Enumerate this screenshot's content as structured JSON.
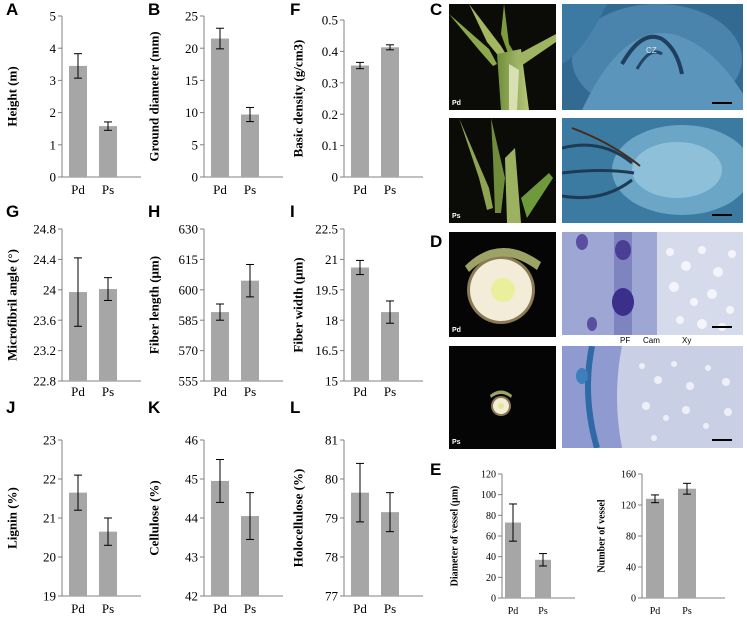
{
  "panel_letters": {
    "A": "A",
    "B": "B",
    "F": "F",
    "C": "C",
    "G": "G",
    "H": "H",
    "I": "I",
    "D": "D",
    "J": "J",
    "K": "K",
    "L": "L",
    "E": "E"
  },
  "photo_labels": {
    "pd": "Pd",
    "ps": "Ps",
    "cz": "CZ",
    "pf": "PF",
    "cam": "Cam",
    "xy": "Xy"
  },
  "colors": {
    "bar": "#a6a6a6",
    "axis": "#808080",
    "error": "#000000"
  },
  "chart_data": [
    {
      "id": "A",
      "type": "bar",
      "categories": [
        "Pd",
        "Ps"
      ],
      "values": [
        3.45,
        1.58
      ],
      "errors": [
        0.38,
        0.13
      ],
      "ylabel": "Height (m)",
      "ylim": [
        0,
        5
      ],
      "ticks": [
        "0",
        "1",
        "2",
        "3",
        "4",
        "5"
      ]
    },
    {
      "id": "B",
      "type": "bar",
      "categories": [
        "Pd",
        "Ps"
      ],
      "values": [
        21.5,
        9.7
      ],
      "errors": [
        1.6,
        1.1
      ],
      "ylabel": "Ground diameter (mm)",
      "ylim": [
        0,
        25
      ],
      "ticks": [
        "0",
        "5",
        "10",
        "15",
        "20",
        "25"
      ]
    },
    {
      "id": "F",
      "type": "bar",
      "categories": [
        "Pd",
        "Ps"
      ],
      "values": [
        0.355,
        0.413
      ],
      "errors": [
        0.01,
        0.008
      ],
      "ylabel": "Basic density (g/cm3)",
      "ylim": [
        0,
        0.5
      ],
      "ticks": [
        "0",
        "0.1",
        "0.2",
        "0.3",
        "0.4",
        "0.5"
      ]
    },
    {
      "id": "G",
      "type": "bar",
      "categories": [
        "Pd",
        "Ps"
      ],
      "values": [
        23.97,
        24.01
      ],
      "errors": [
        0.45,
        0.15
      ],
      "ylabel": "Microfibril angle (°)",
      "ylim": [
        22.8,
        24.8
      ],
      "ticks": [
        "22.8",
        "23.2",
        "23.6",
        "24",
        "24.4",
        "24.8"
      ]
    },
    {
      "id": "H",
      "type": "bar",
      "categories": [
        "Pd",
        "Ps"
      ],
      "values": [
        589,
        604.5
      ],
      "errors": [
        4,
        8
      ],
      "ylabel": "Fiber length (μm)",
      "ylim": [
        555,
        630
      ],
      "ticks": [
        "555",
        "570",
        "585",
        "600",
        "615",
        "630"
      ]
    },
    {
      "id": "I",
      "type": "bar",
      "categories": [
        "Pd",
        "Ps"
      ],
      "values": [
        20.6,
        18.4
      ],
      "errors": [
        0.35,
        0.55
      ],
      "ylabel": "Fiber width (μm)",
      "ylim": [
        15,
        22.5
      ],
      "ticks": [
        "15",
        "16.5",
        "18",
        "19.5",
        "21",
        "22.5"
      ]
    },
    {
      "id": "J",
      "type": "bar",
      "categories": [
        "Pd",
        "Ps"
      ],
      "values": [
        21.65,
        20.65
      ],
      "errors": [
        0.45,
        0.35
      ],
      "ylabel": "Lignin (%)",
      "ylim": [
        19,
        23
      ],
      "ticks": [
        "19",
        "20",
        "21",
        "22",
        "23"
      ]
    },
    {
      "id": "K",
      "type": "bar",
      "categories": [
        "Pd",
        "Ps"
      ],
      "values": [
        44.95,
        44.05
      ],
      "errors": [
        0.55,
        0.6
      ],
      "ylabel": "Cellulose (%)",
      "ylim": [
        42,
        46
      ],
      "ticks": [
        "42",
        "43",
        "44",
        "45",
        "46"
      ]
    },
    {
      "id": "L",
      "type": "bar",
      "categories": [
        "Pd",
        "Ps"
      ],
      "values": [
        79.65,
        79.15
      ],
      "errors": [
        0.75,
        0.5
      ],
      "ylabel": "Holocellulose (%)",
      "ylim": [
        77,
        81
      ],
      "ticks": [
        "77",
        "78",
        "79",
        "80",
        "81"
      ]
    },
    {
      "id": "E1",
      "type": "bar",
      "categories": [
        "Pd",
        "Ps"
      ],
      "values": [
        73,
        37
      ],
      "errors": [
        18,
        6
      ],
      "ylabel": "Diameter of vessel (μm)",
      "ylim": [
        0,
        120
      ],
      "ticks": [
        "0",
        "20",
        "40",
        "60",
        "80",
        "100",
        "120"
      ]
    },
    {
      "id": "E2",
      "type": "bar",
      "categories": [
        "Pd",
        "Ps"
      ],
      "values": [
        128,
        141
      ],
      "errors": [
        5,
        7
      ],
      "ylabel": "Number of vessel",
      "ylim": [
        0,
        160
      ],
      "ticks": [
        "0",
        "40",
        "80",
        "120",
        "160"
      ]
    }
  ]
}
